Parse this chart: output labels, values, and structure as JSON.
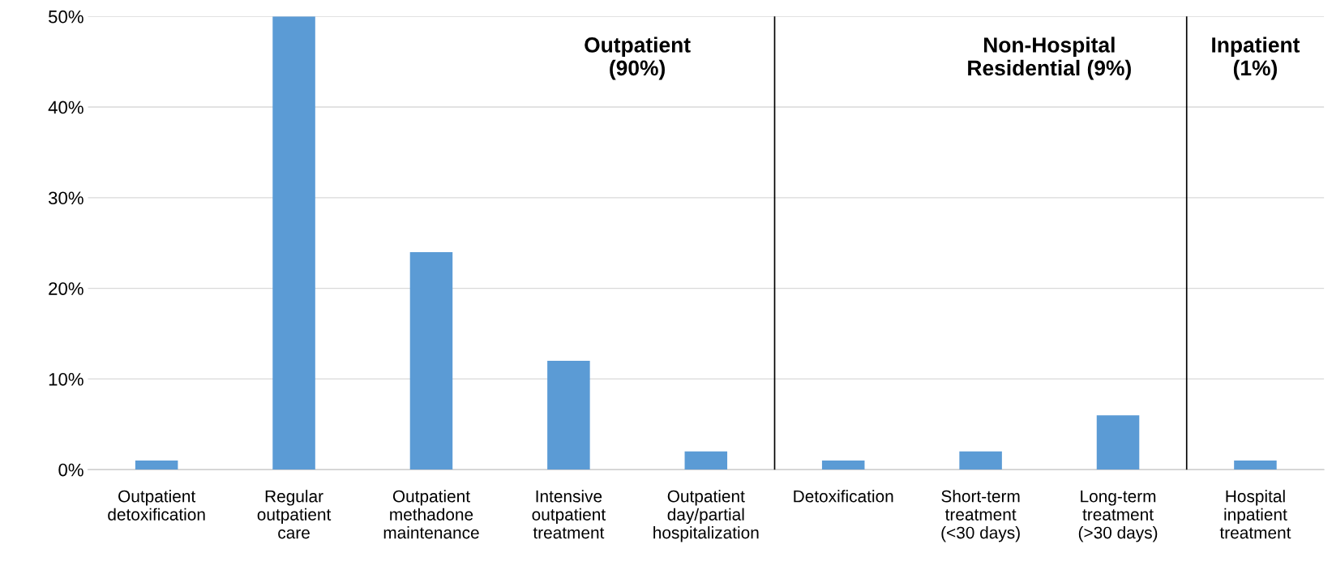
{
  "chart_data": {
    "type": "bar",
    "categories": [
      "Outpatient\ndetoxification",
      "Regular\noutpatient\ncare",
      "Outpatient\nmethadone\nmaintenance",
      "Intensive\noutpatient\ntreatment",
      "Outpatient\nday/partial\nhospitalization",
      "Detoxification",
      "Short-term\ntreatment\n(<30 days)",
      "Long-term\ntreatment\n(>30 days)",
      "Hospital\ninpatient\ntreatment"
    ],
    "values": [
      1,
      50,
      24,
      12,
      2,
      1,
      2,
      6,
      1
    ],
    "color": "#5b9bd5",
    "ylim": [
      0,
      50
    ],
    "yticks": [
      {
        "value": 0,
        "label": "0%"
      },
      {
        "value": 10,
        "label": "10%"
      },
      {
        "value": 20,
        "label": "20%"
      },
      {
        "value": 30,
        "label": "30%"
      },
      {
        "value": 40,
        "label": "40%"
      },
      {
        "value": 50,
        "label": "50%"
      }
    ],
    "grid": "y",
    "annotations": [
      "Outpatient\n(90%)",
      "Non-Hospital\nResidential (9%)",
      "Inpatient\n(1%)"
    ]
  }
}
